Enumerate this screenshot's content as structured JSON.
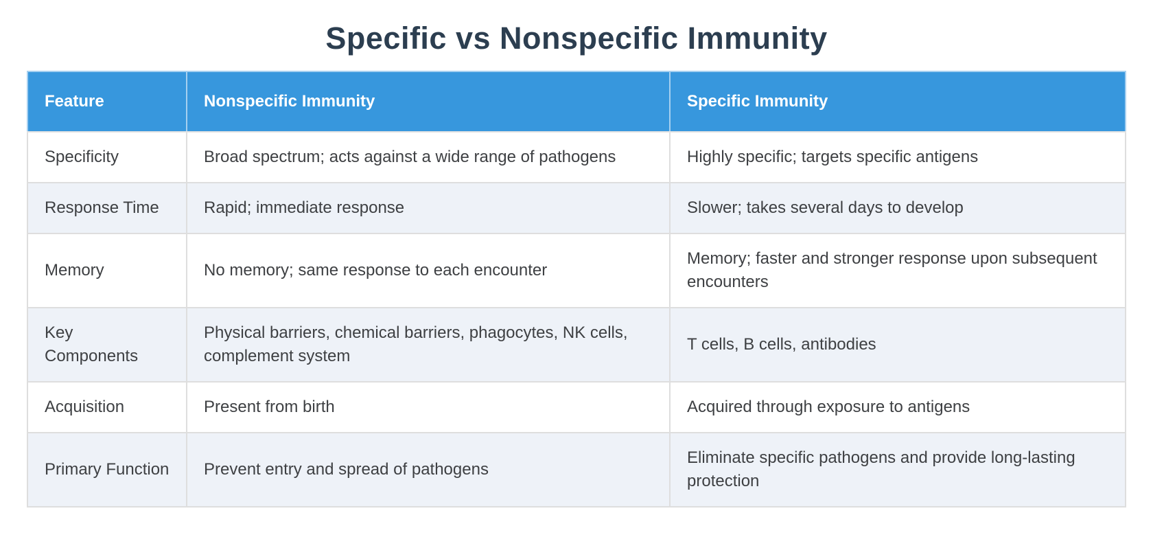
{
  "title": "Specific vs Nonspecific Immunity",
  "chart_data": {
    "type": "table",
    "title": "Specific vs Nonspecific Immunity",
    "columns": [
      "Feature",
      "Nonspecific Immunity",
      "Specific Immunity"
    ],
    "rows": [
      [
        "Specificity",
        "Broad spectrum; acts against a wide range of pathogens",
        "Highly specific; targets specific antigens"
      ],
      [
        "Response Time",
        "Rapid; immediate response",
        "Slower; takes several days to develop"
      ],
      [
        "Memory",
        "No memory; same response to each encounter",
        "Memory; faster and stronger response upon subsequent encounters"
      ],
      [
        "Key Components",
        "Physical barriers, chemical barriers, phagocytes, NK cells, complement system",
        "T cells, B cells, antibodies"
      ],
      [
        "Acquisition",
        "Present from birth",
        "Acquired through exposure to antigens"
      ],
      [
        "Primary Function",
        "Prevent entry and spread of pathogens",
        "Eliminate specific pathogens and provide long-lasting protection"
      ]
    ],
    "layout": {
      "legend": "none",
      "grid": "cell-borders",
      "header_position": "top"
    },
    "colors": {
      "header_bg": "#3797dd",
      "header_text": "#ffffff",
      "header_border": "#a6d0f0",
      "row_bg": "#ffffff",
      "row_alt_bg": "#eef2f8",
      "cell_border": "#dedede",
      "body_text": "#3e4043",
      "title_color": "#2c3e50"
    }
  }
}
